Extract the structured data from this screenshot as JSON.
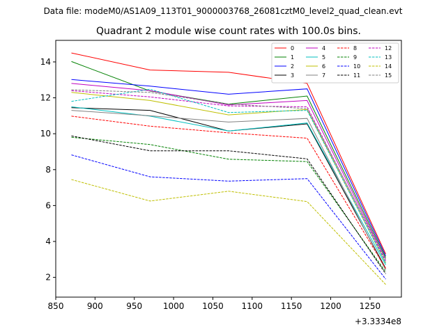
{
  "chart_data": {
    "type": "line",
    "suptitle": "Data file: modeM0/AS1A09_113T01_9000003768_26081cztM0_level2_quad_clean.evt",
    "title": "Quadrant 2 module wise count rates with 100.0s bins.",
    "xlabel": "",
    "ylabel": "",
    "x_offset_label": "+3.3334e8",
    "x": [
      870,
      970,
      1070,
      1170,
      1270
    ],
    "xlim": [
      850,
      1290
    ],
    "ylim": [
      0.9,
      15.2
    ],
    "xticks": [
      850,
      900,
      950,
      1000,
      1050,
      1100,
      1150,
      1200,
      1250
    ],
    "yticks": [
      2,
      4,
      6,
      8,
      10,
      12,
      14
    ],
    "legend_position": "top-right",
    "grid": false,
    "series": [
      {
        "name": "0",
        "color": "#ff0000",
        "style": "solid",
        "values": [
          14.5,
          13.55,
          13.42,
          12.8,
          3.3
        ]
      },
      {
        "name": "1",
        "color": "#008000",
        "style": "solid",
        "values": [
          14.02,
          12.38,
          11.65,
          12.1,
          3.1
        ]
      },
      {
        "name": "2",
        "color": "#0000ff",
        "style": "solid",
        "values": [
          13.02,
          12.65,
          12.2,
          12.5,
          3.2
        ]
      },
      {
        "name": "3",
        "color": "#000000",
        "style": "solid",
        "values": [
          11.45,
          11.3,
          10.15,
          10.55,
          2.5
        ]
      },
      {
        "name": "4",
        "color": "#bf00bf",
        "style": "solid",
        "values": [
          12.8,
          12.4,
          11.6,
          11.85,
          3.0
        ]
      },
      {
        "name": "5",
        "color": "#00bfbf",
        "style": "solid",
        "values": [
          11.5,
          10.98,
          10.15,
          10.6,
          2.7
        ]
      },
      {
        "name": "6",
        "color": "#bfbf00",
        "style": "solid",
        "values": [
          12.3,
          11.85,
          11.05,
          11.35,
          2.8
        ]
      },
      {
        "name": "7",
        "color": "#808080",
        "style": "solid",
        "values": [
          11.3,
          11.0,
          10.65,
          10.85,
          2.4
        ]
      },
      {
        "name": "8",
        "color": "#ff0000",
        "style": "dashed",
        "values": [
          10.98,
          10.42,
          10.05,
          9.75,
          2.5
        ]
      },
      {
        "name": "9",
        "color": "#008000",
        "style": "dashed",
        "values": [
          9.8,
          9.4,
          8.58,
          8.45,
          2.3
        ]
      },
      {
        "name": "10",
        "color": "#0000ff",
        "style": "dashed",
        "values": [
          8.82,
          7.6,
          7.36,
          7.5,
          1.9
        ]
      },
      {
        "name": "11",
        "color": "#000000",
        "style": "dashed",
        "values": [
          9.88,
          9.05,
          9.05,
          8.6,
          2.2
        ]
      },
      {
        "name": "12",
        "color": "#bf00bf",
        "style": "dashed",
        "values": [
          12.4,
          12.05,
          11.55,
          11.5,
          2.9
        ]
      },
      {
        "name": "13",
        "color": "#00bfbf",
        "style": "dashed",
        "values": [
          11.8,
          12.48,
          11.18,
          11.3,
          2.8
        ]
      },
      {
        "name": "14",
        "color": "#bfbf00",
        "style": "dashed",
        "values": [
          7.45,
          6.25,
          6.8,
          6.22,
          1.6
        ]
      },
      {
        "name": "15",
        "color": "#808080",
        "style": "dashed",
        "values": [
          12.45,
          12.3,
          11.65,
          11.4,
          3.0
        ]
      }
    ]
  }
}
